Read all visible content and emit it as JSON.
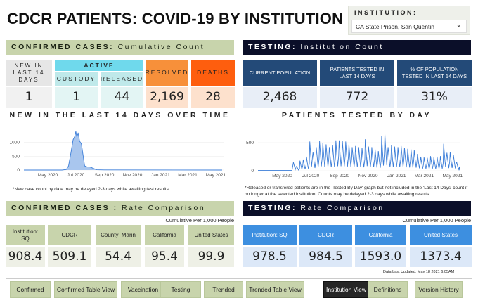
{
  "title": "CDCR PATIENTS: COVID-19 BY INSTITUTION",
  "institution": {
    "label": "INSTITUTION:",
    "selected": "CA State Prison, San Quentin"
  },
  "confirmed": {
    "banner_bold": "CONFIRMED CASES:",
    "banner_rest": "Cumulative Count",
    "new14_label": "NEW IN LAST 14 DAYS",
    "new14": "1",
    "active_label": "ACTIVE",
    "custody_label": "CUSTODY",
    "custody": "1",
    "released_label": "RELEASED",
    "released": "44",
    "resolved_label": "RESOLVED",
    "resolved": "2,169",
    "deaths_label": "DEATHS",
    "deaths": "28",
    "chart_title": "NEW IN THE LAST 14 DAYS OVER TIME",
    "note": "*New case count by date may be delayed 2-3 days while awaiting test results."
  },
  "testing": {
    "banner_bold": "TESTING:",
    "banner_rest": "Institution Count",
    "pop_label": "CURRENT POPULATION",
    "pop": "2,468",
    "tested_label": "PATIENTS TESTED IN LAST 14 DAYS",
    "tested": "772",
    "pct_label": "% OF POPULATION TESTED IN LAST 14 DAYS",
    "pct": "31%",
    "chart_title": "PATIENTS TESTED BY DAY",
    "note": "*Released or transfered patients are in the 'Tested By Day' graph but not included in the 'Last 14 Days' count if no longer at the selected institution.  Counts may be delayed 2-3 days while awaiting results."
  },
  "rate_confirmed": {
    "banner_bold": "CONFIRMED CASES :",
    "banner_rest": "Rate Comparison",
    "sub": "Cumulative Per 1,000 People",
    "items": [
      {
        "label": "Institution: SQ",
        "value": "908.4"
      },
      {
        "label": "CDCR",
        "value": "509.1"
      },
      {
        "label": "County: Marin",
        "value": "54.4"
      },
      {
        "label": "California",
        "value": "95.4"
      },
      {
        "label": "United States",
        "value": "99.9"
      }
    ]
  },
  "rate_testing": {
    "banner_bold": "TESTING:",
    "banner_rest": "Rate Comparison",
    "sub": "Cumulative Per 1,000 People",
    "items": [
      {
        "label": "Institution: SQ",
        "value": "978.5"
      },
      {
        "label": "CDCR",
        "value": "984.5"
      },
      {
        "label": "California",
        "value": "1593.0"
      },
      {
        "label": "United States",
        "value": "1373.4"
      }
    ]
  },
  "updated": "Data Last Updated: May 18 2021 6:05AM",
  "nav": [
    "Confirmed",
    "Confirmed Table View",
    "Vaccination",
    "Testing",
    "Trended",
    "Trended Table View",
    "Institution View",
    "Definitions",
    "Version History"
  ],
  "nav_active": "Institution View",
  "chart_data": [
    {
      "type": "area",
      "title": "NEW IN THE LAST 14 DAYS OVER TIME",
      "xlim": [
        "2020-03-10",
        "2021-05-18"
      ],
      "ylim": [
        0,
        1450
      ],
      "yticks": [
        0,
        500,
        1000
      ],
      "xticks": [
        "May 2020",
        "Jul 2020",
        "Sep 2020",
        "Nov 2020",
        "Jan 2021",
        "Mar 2021",
        "May 2021"
      ],
      "x": [
        "2020-03-10",
        "2020-06-01",
        "2020-06-10",
        "2020-06-15",
        "2020-06-20",
        "2020-06-25",
        "2020-06-28",
        "2020-07-01",
        "2020-07-03",
        "2020-07-06",
        "2020-07-09",
        "2020-07-13",
        "2020-07-17",
        "2020-07-20",
        "2020-07-25",
        "2020-08-01",
        "2020-08-08",
        "2020-08-15",
        "2020-09-01",
        "2021-05-15"
      ],
      "y": [
        0,
        0,
        20,
        150,
        600,
        1100,
        1200,
        1400,
        1200,
        1350,
        1050,
        950,
        500,
        150,
        120,
        110,
        60,
        10,
        5,
        0
      ]
    },
    {
      "type": "line",
      "title": "PATIENTS TESTED BY DAY",
      "xlim": [
        "2020-03-10",
        "2021-05-18"
      ],
      "ylim": [
        0,
        700
      ],
      "yticks": [
        0,
        500
      ],
      "xticks": [
        "May 2020",
        "Jul 2020",
        "Sep 2020",
        "Nov 2020",
        "Jan 2021",
        "Mar 2021",
        "May 2021"
      ],
      "weekly_start": "2020-05-25",
      "trough_ratio": 0.15,
      "weekly_peaks": [
        150,
        80,
        180,
        200,
        250,
        520,
        330,
        420,
        530,
        500,
        470,
        420,
        460,
        540,
        540,
        530,
        520,
        470,
        420,
        440,
        420,
        410,
        560,
        430,
        420,
        380,
        350,
        620,
        660,
        420,
        450,
        430,
        420,
        440,
        410,
        390,
        380,
        370,
        300,
        250,
        240,
        230,
        260,
        240,
        250,
        260,
        480,
        320,
        330,
        280,
        150
      ]
    }
  ],
  "colors": {
    "green": "#c8d4ac",
    "navy": "#0b0f29",
    "cyan": "#6fd9ec",
    "orange": "#f7903a",
    "red": "#fe5e0e",
    "blue": "#3d8fe0",
    "darkblue": "#234a78"
  }
}
